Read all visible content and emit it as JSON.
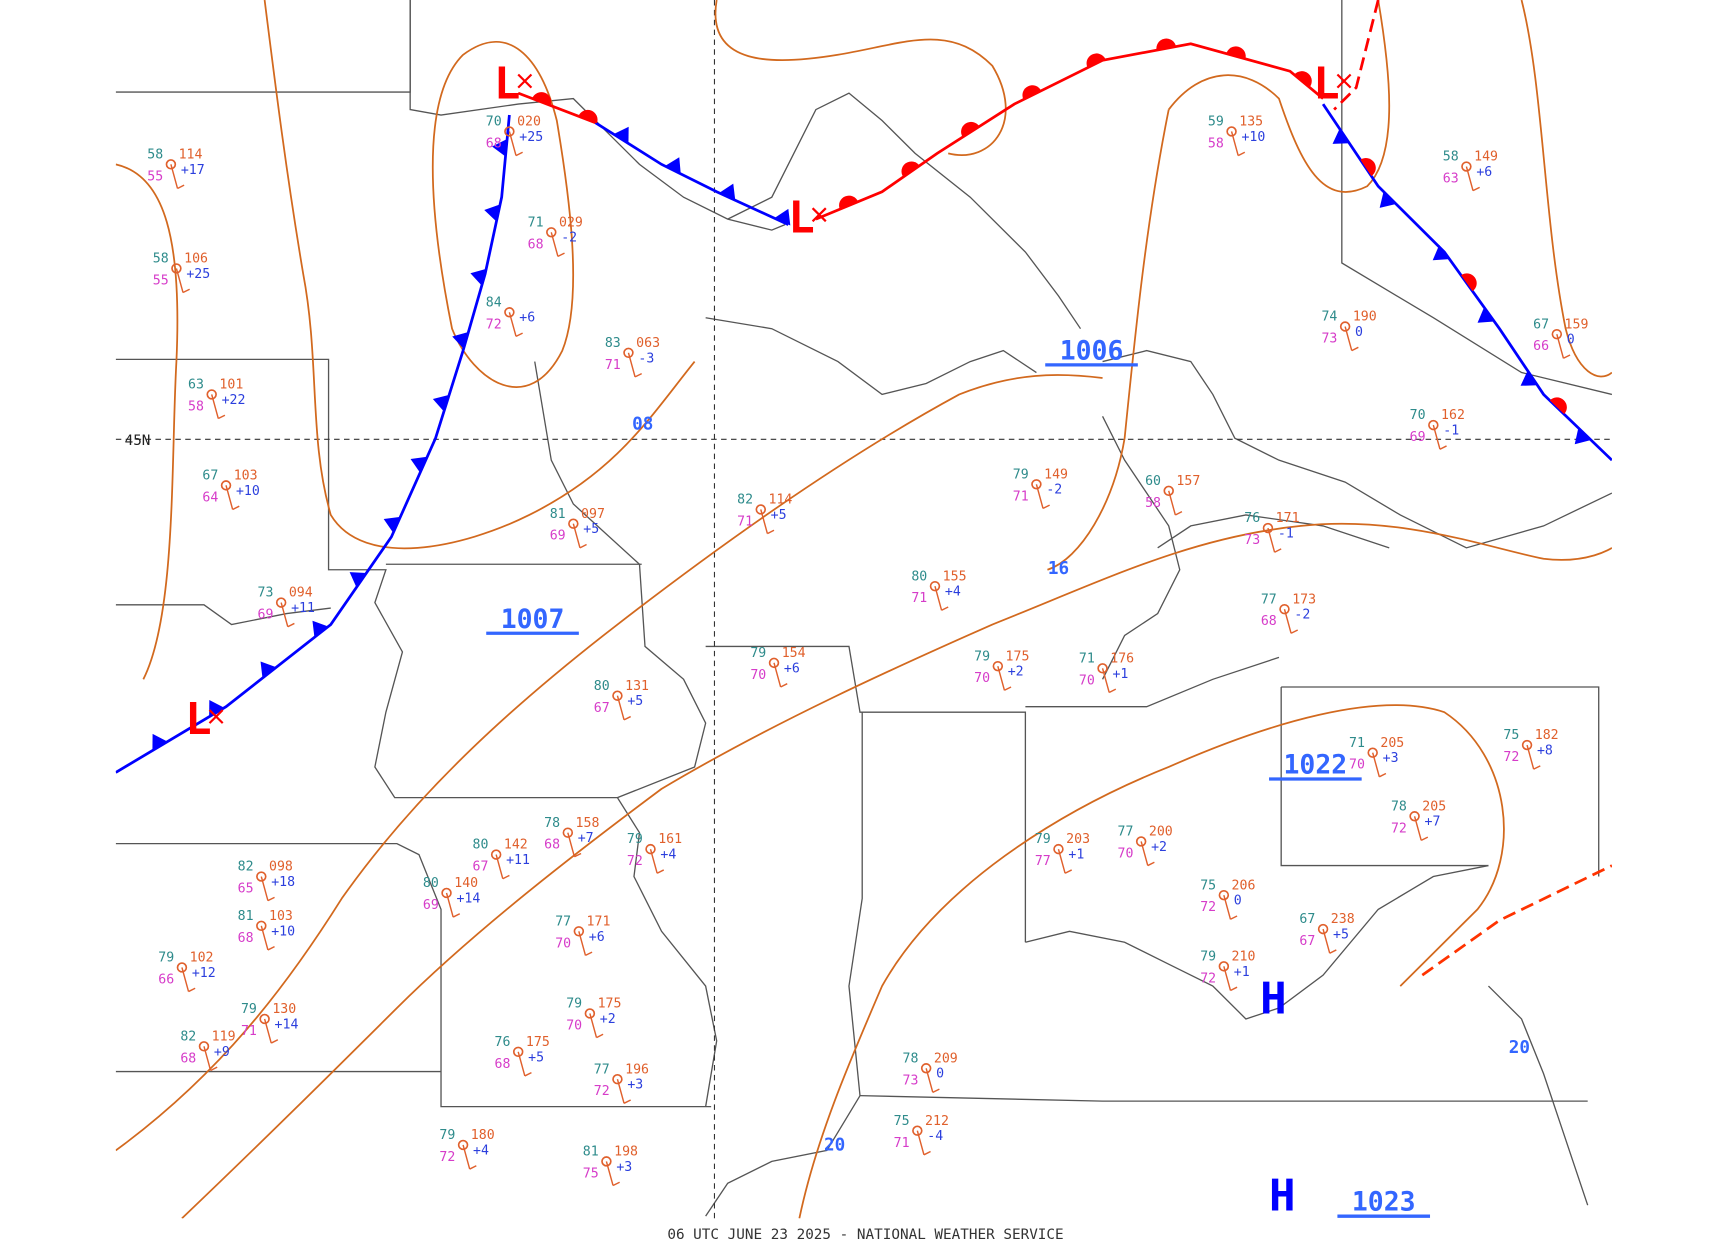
{
  "map": {
    "footer": "06 UTC JUNE 23 2025 - NATIONAL WEATHER SERVICE",
    "latitude_label": "45N",
    "pressure_centers": [
      "L",
      "L",
      "L",
      "L",
      "H",
      "H"
    ],
    "central_pressures": [
      "1006",
      "1007",
      "1022",
      "1023"
    ],
    "isobar_labels": [
      "08",
      "16",
      "20",
      "20"
    ],
    "stations": [
      {
        "temp": "70",
        "pressure": "020",
        "tendency": "+25",
        "dew": "68"
      },
      {
        "temp": "71",
        "pressure": "029",
        "tendency": "-2",
        "dew": "68"
      },
      {
        "temp": "84",
        "pressure": "",
        "tendency": "+6",
        "dew": "72"
      },
      {
        "temp": "83",
        "pressure": "063",
        "tendency": "-3",
        "dew": "71"
      },
      {
        "temp": "82",
        "pressure": "114",
        "tendency": "+5",
        "dew": "71"
      },
      {
        "temp": "81",
        "pressure": "097",
        "tendency": "+5",
        "dew": "69"
      },
      {
        "temp": "80",
        "pressure": "155",
        "tendency": "+4",
        "dew": "71"
      },
      {
        "temp": "79",
        "pressure": "154",
        "tendency": "+6",
        "dew": "70"
      },
      {
        "temp": "79",
        "pressure": "175",
        "tendency": "+2",
        "dew": "70"
      },
      {
        "temp": "71",
        "pressure": "176",
        "tendency": "+1",
        "dew": "70"
      },
      {
        "temp": "80",
        "pressure": "131",
        "tendency": "+5",
        "dew": "67"
      },
      {
        "temp": "79",
        "pressure": "161",
        "tendency": "+4",
        "dew": "72"
      },
      {
        "temp": "78",
        "pressure": "158",
        "tendency": "+7",
        "dew": "68"
      },
      {
        "temp": "80",
        "pressure": "142",
        "tendency": "+11",
        "dew": "67"
      },
      {
        "temp": "77",
        "pressure": "171",
        "tendency": "+6",
        "dew": "70"
      },
      {
        "temp": "79",
        "pressure": "175",
        "tendency": "+2",
        "dew": "70"
      },
      {
        "temp": "77",
        "pressure": "196",
        "tendency": "+3",
        "dew": "72"
      },
      {
        "temp": "76",
        "pressure": "175",
        "tendency": "+5",
        "dew": "68"
      },
      {
        "temp": "75",
        "pressure": "212",
        "tendency": "-4",
        "dew": "71"
      },
      {
        "temp": "78",
        "pressure": "209",
        "tendency": "0",
        "dew": "73"
      },
      {
        "temp": "79",
        "pressure": "203",
        "tendency": "+1",
        "dew": "77"
      },
      {
        "temp": "77",
        "pressure": "200",
        "tendency": "+2",
        "dew": "70"
      },
      {
        "temp": "75",
        "pressure": "206",
        "tendency": "0",
        "dew": "72"
      },
      {
        "temp": "79",
        "pressure": "210",
        "tendency": "+1",
        "dew": "72"
      },
      {
        "temp": "67",
        "pressure": "238",
        "tendency": "+5",
        "dew": "67"
      },
      {
        "temp": "71",
        "pressure": "205",
        "tendency": "+3",
        "dew": "70"
      },
      {
        "temp": "78",
        "pressure": "205",
        "tendency": "+7",
        "dew": "72"
      },
      {
        "temp": "75",
        "pressure": "182",
        "tendency": "+8",
        "dew": "72"
      },
      {
        "temp": "79",
        "pressure": "149",
        "tendency": "-2",
        "dew": "71"
      },
      {
        "temp": "60",
        "pressure": "157",
        "tendency": "",
        "dew": "58"
      },
      {
        "temp": "76",
        "pressure": "171",
        "tendency": "-1",
        "dew": "73"
      },
      {
        "temp": "77",
        "pressure": "173",
        "tendency": "-2",
        "dew": "68"
      },
      {
        "temp": "74",
        "pressure": "190",
        "tendency": "0",
        "dew": "73"
      },
      {
        "temp": "67",
        "pressure": "159",
        "tendency": "0",
        "dew": "66"
      },
      {
        "temp": "70",
        "pressure": "162",
        "tendency": "-1",
        "dew": "69"
      },
      {
        "temp": "58",
        "pressure": "114",
        "tendency": "+17",
        "dew": "55"
      },
      {
        "temp": "58",
        "pressure": "106",
        "tendency": "+25",
        "dew": "55"
      },
      {
        "temp": "63",
        "pressure": "101",
        "tendency": "+22",
        "dew": "58"
      },
      {
        "temp": "67",
        "pressure": "103",
        "tendency": "+10",
        "dew": "64"
      },
      {
        "temp": "73",
        "pressure": "094",
        "tendency": "+11",
        "dew": "69"
      },
      {
        "temp": "82",
        "pressure": "098",
        "tendency": "+18",
        "dew": "65"
      },
      {
        "temp": "81",
        "pressure": "103",
        "tendency": "+10",
        "dew": "68"
      },
      {
        "temp": "79",
        "pressure": "102",
        "tendency": "+12",
        "dew": "66"
      },
      {
        "temp": "79",
        "pressure": "130",
        "tendency": "+14",
        "dew": "71"
      },
      {
        "temp": "82",
        "pressure": "119",
        "tendency": "+9",
        "dew": "68"
      },
      {
        "temp": "80",
        "pressure": "140",
        "tendency": "+14",
        "dew": "69"
      },
      {
        "temp": "79",
        "pressure": "180",
        "tendency": "+4",
        "dew": "72"
      },
      {
        "temp": "81",
        "pressure": "198",
        "tendency": "+3",
        "dew": "75"
      },
      {
        "temp": "58",
        "pressure": "149",
        "tendency": "+6",
        "dew": "63"
      },
      {
        "temp": "59",
        "pressure": "135",
        "tendency": "+10",
        "dew": "58"
      }
    ]
  }
}
